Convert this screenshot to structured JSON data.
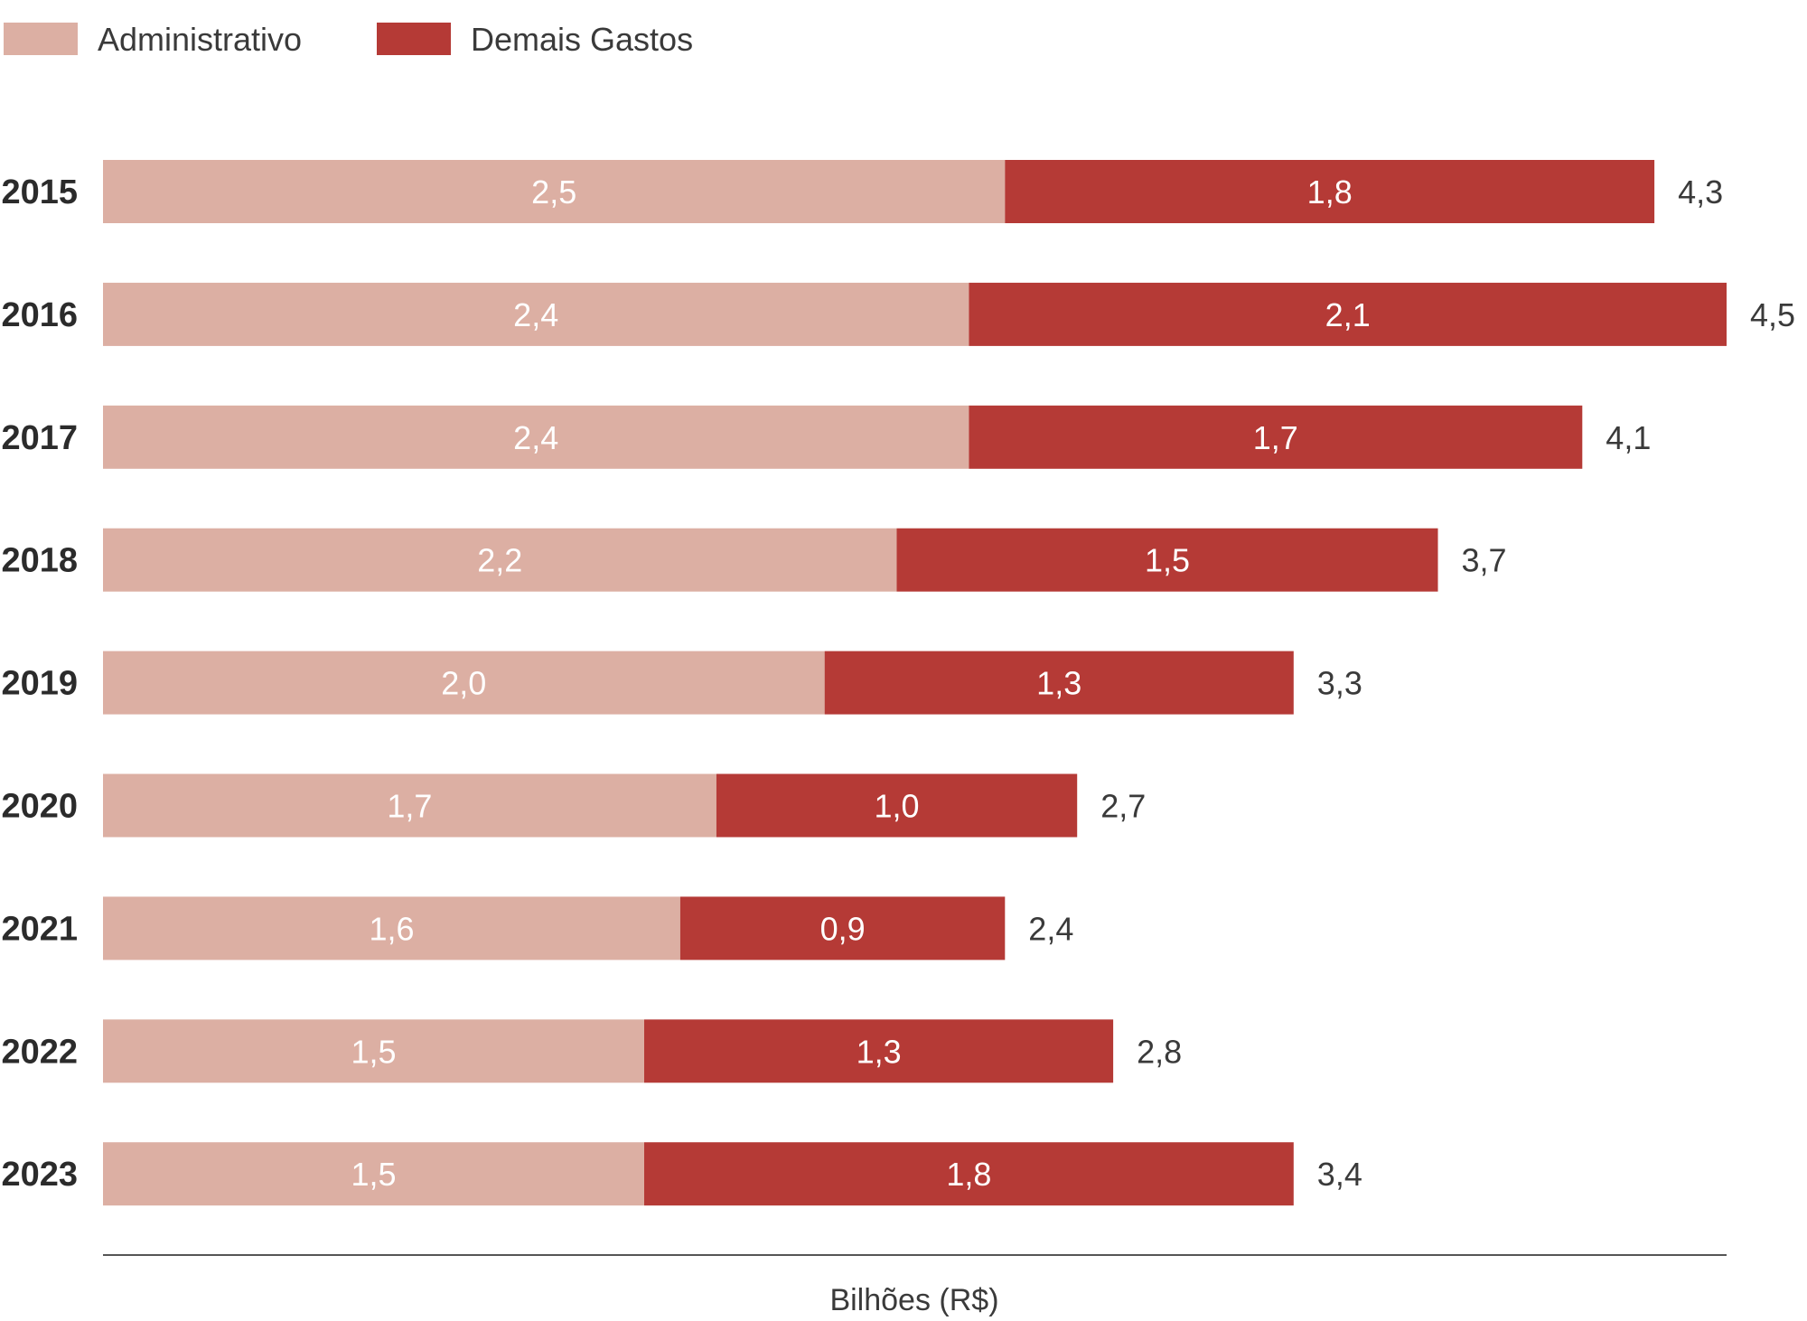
{
  "chart_data": {
    "type": "bar",
    "orientation": "horizontal",
    "stacked": true,
    "categories": [
      "2015",
      "2016",
      "2017",
      "2018",
      "2019",
      "2020",
      "2021",
      "2022",
      "2023"
    ],
    "series": [
      {
        "name": "Administrativo",
        "color": "#dcafa3",
        "values": [
          2.5,
          2.4,
          2.4,
          2.2,
          2.0,
          1.7,
          1.6,
          1.5,
          1.5
        ],
        "labels": [
          "2,5",
          "2,4",
          "2,4",
          "2,2",
          "2,0",
          "1,7",
          "1,6",
          "1,5",
          "1,5"
        ]
      },
      {
        "name": "Demais Gastos",
        "color": "#b53a36",
        "values": [
          1.8,
          2.1,
          1.7,
          1.5,
          1.3,
          1.0,
          0.9,
          1.3,
          1.8
        ],
        "labels": [
          "1,8",
          "2,1",
          "1,7",
          "1,5",
          "1,3",
          "1,0",
          "0,9",
          "1,3",
          "1,8"
        ]
      }
    ],
    "totals": [
      4.3,
      4.5,
      4.1,
      3.7,
      3.3,
      2.7,
      2.4,
      2.8,
      3.4
    ],
    "total_labels": [
      "4,3",
      "4,5",
      "4,1",
      "3,7",
      "3,3",
      "2,7",
      "2,4",
      "2,8",
      "3,4"
    ],
    "xlabel": "Bilhões (R$)",
    "ylabel": "",
    "xlim": [
      0,
      4.5
    ],
    "grid": false,
    "legend_position": "top-left"
  }
}
